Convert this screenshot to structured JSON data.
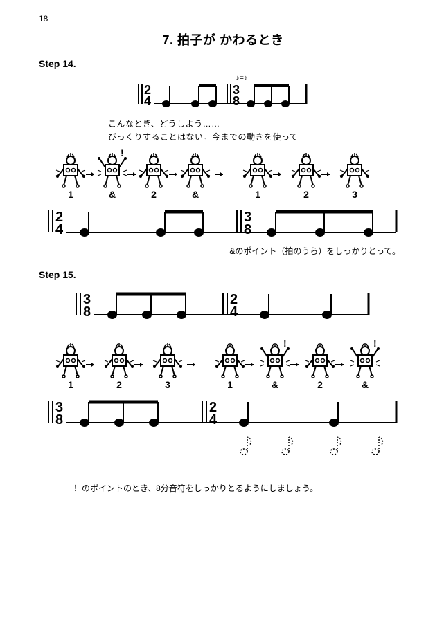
{
  "page_number": "18",
  "title": "7. 拍子が かわるとき",
  "step14": {
    "label": "Step 14.",
    "intro1": "こんなとき、どうしよう……",
    "intro2": "びっくりすることはない。今までの動きを使って",
    "counts": [
      "1",
      "&",
      "2",
      "&",
      "1",
      "2",
      "3"
    ],
    "note_after": "&のポイント（拍のうら）をしっかりとって。"
  },
  "step15": {
    "label": "Step 15.",
    "counts": [
      "1",
      "2",
      "3",
      "1",
      "&",
      "2",
      "&"
    ],
    "bottom_note": "！のポイントのとき、8分音符をしっかりとるようにしましょう。"
  },
  "notation": {
    "timesigs": {
      "a": "2/4",
      "b": "3/8"
    },
    "colors": {
      "ink": "#000000",
      "paper": "#ffffff"
    },
    "staff1": {
      "ts_left": "2/4",
      "ts_right": "3/8",
      "notes": [
        {
          "x": 0,
          "type": "quarter"
        },
        {
          "x": 1,
          "type": "eighth",
          "beam": "a"
        },
        {
          "x": 1.5,
          "type": "eighth",
          "beam": "a"
        },
        {
          "x": 2,
          "type": "eighth",
          "beam": "b"
        },
        {
          "x": 2.33,
          "type": "eighth",
          "beam": "b"
        },
        {
          "x": 2.67,
          "type": "eighth",
          "beam": "b"
        }
      ],
      "equiv": "♪=♪"
    },
    "staff2": {
      "ts_left": "2/4",
      "ts_right": "3/8",
      "notes": [
        {
          "x": 0,
          "type": "quarter"
        },
        {
          "x": 1,
          "type": "eighth",
          "beam": "a"
        },
        {
          "x": 1.5,
          "type": "eighth",
          "beam": "a"
        },
        {
          "x": 2,
          "type": "eighth",
          "beam": "b"
        },
        {
          "x": 2.33,
          "type": "eighth",
          "beam": "b"
        },
        {
          "x": 2.67,
          "type": "eighth",
          "beam": "b"
        }
      ]
    },
    "staff3": {
      "ts_left": "3/8",
      "ts_right": "2/4",
      "notes": [
        {
          "x": 0,
          "type": "eighth",
          "beam": "a"
        },
        {
          "x": 0.33,
          "type": "eighth",
          "beam": "a"
        },
        {
          "x": 0.67,
          "type": "eighth",
          "beam": "a"
        },
        {
          "x": 1,
          "type": "quarter"
        },
        {
          "x": 2,
          "type": "quarter"
        }
      ]
    },
    "staff4": {
      "ts_left": "3/8",
      "ts_right": "2/4",
      "notes": [
        {
          "x": 0,
          "type": "eighth",
          "beam": "a"
        },
        {
          "x": 0.33,
          "type": "eighth",
          "beam": "a"
        },
        {
          "x": 0.67,
          "type": "eighth",
          "beam": "a"
        },
        {
          "x": 1,
          "type": "quarter"
        },
        {
          "x": 2,
          "type": "quarter"
        }
      ],
      "eighth_below": 4
    }
  }
}
